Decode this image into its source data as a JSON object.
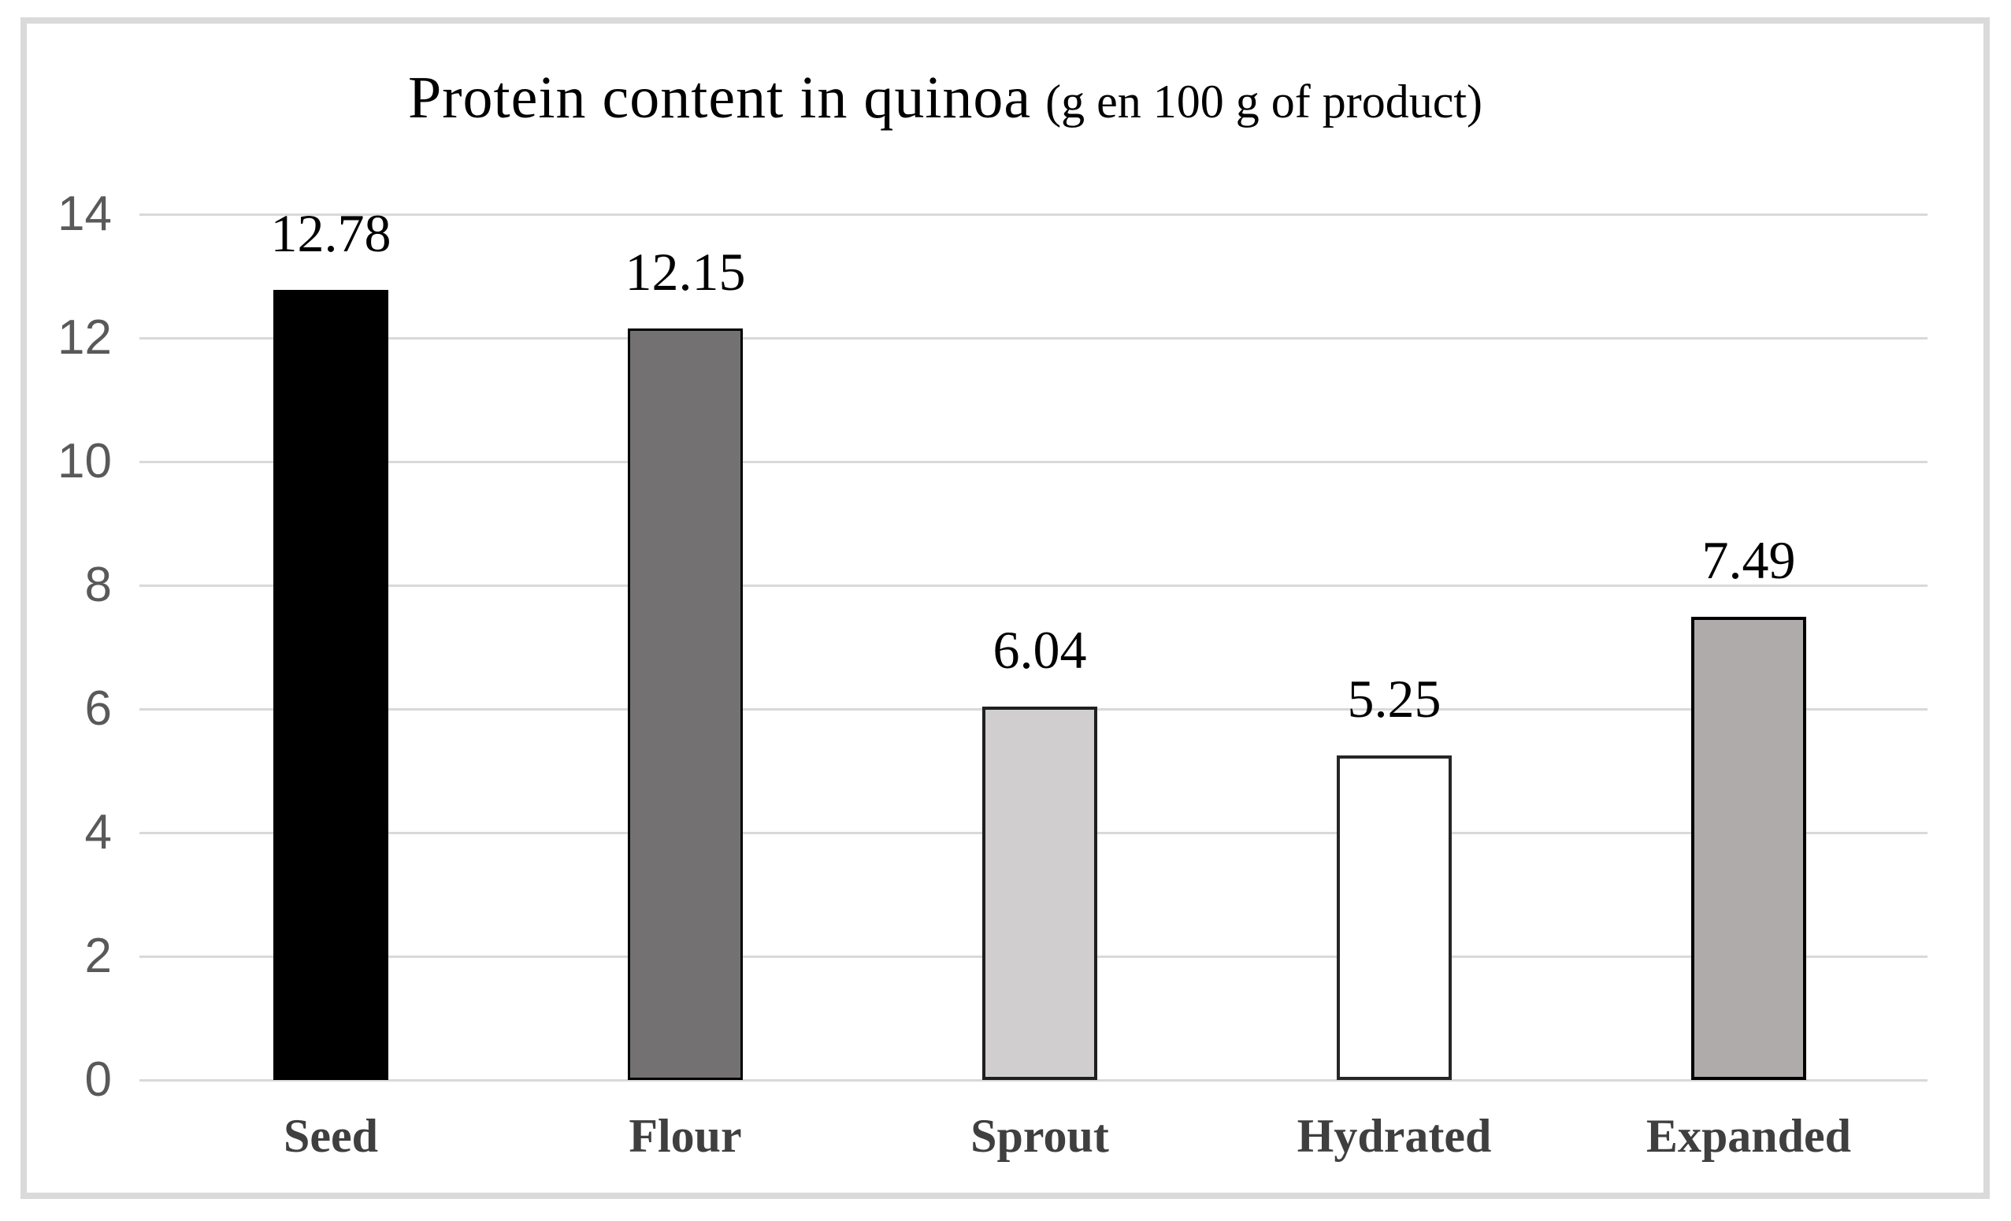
{
  "title": {
    "main": "Protein content in quinoa",
    "unit_suffix": "(g en 100 g of product)"
  },
  "chart_data": {
    "type": "bar",
    "title": "Protein content in quinoa (g en 100 g of product)",
    "categories": [
      "Seed",
      "Flour",
      "Sprout",
      "Hydrated",
      "Expanded"
    ],
    "values": [
      12.78,
      12.15,
      6.04,
      5.25,
      7.49
    ],
    "value_labels": [
      "12.78",
      "12.15",
      "6.04",
      "5.25",
      "7.49"
    ],
    "bar_styles": [
      {
        "fill": "#000000",
        "border": "#000000",
        "border_width": 0
      },
      {
        "fill": "#737171",
        "border": "#000000",
        "border_width": 3
      },
      {
        "fill": "#d0cece",
        "border": "#1f1f1f",
        "border_width": 4
      },
      {
        "fill": "#ffffff",
        "border": "#262626",
        "border_width": 4
      },
      {
        "fill": "#afabab",
        "border": "#000000",
        "border_width": 4
      }
    ],
    "xlabel": "",
    "ylabel": "",
    "ylim": [
      0,
      14
    ],
    "yticks": [
      0,
      2,
      4,
      6,
      8,
      10,
      12,
      14
    ],
    "grid": true,
    "legend": false,
    "colors": {
      "gridline": "#d9d9d9",
      "axis_line": "#d9d9d9",
      "tick_label": "#595959",
      "category_label": "#3f3f3f",
      "value_label": "#000000",
      "frame_border": "#dadada",
      "background": "#ffffff"
    }
  }
}
